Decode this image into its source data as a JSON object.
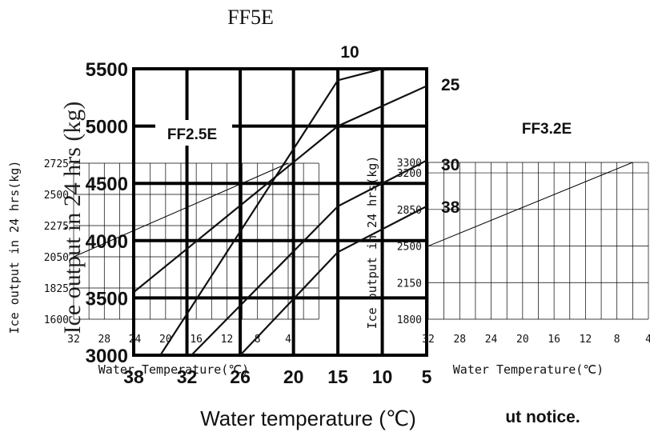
{
  "chart_data": [
    {
      "type": "line",
      "title": "FF5E",
      "xlabel": "Water temperature (℃)",
      "ylabel": "Ice output in 24 hrs (kg)",
      "x_ticks": [
        "38",
        "32",
        "26",
        "20",
        "15",
        "10",
        "5"
      ],
      "y_ticks": [
        "3000",
        "3500",
        "4000",
        "4500",
        "5000",
        "5500"
      ],
      "xlim": [
        38,
        5
      ],
      "ylim": [
        3000,
        5500
      ],
      "grid": true,
      "series": [
        {
          "name": "10",
          "x": [
            35,
            15,
            10
          ],
          "y": [
            3000,
            5400,
            5500
          ]
        },
        {
          "name": "25",
          "x": [
            38,
            15,
            5
          ],
          "y": [
            3550,
            5000,
            5350
          ]
        },
        {
          "name": "30",
          "x": [
            31.5,
            15,
            5
          ],
          "y": [
            3000,
            4300,
            4700
          ]
        },
        {
          "name": "38",
          "x": [
            26,
            15,
            5
          ],
          "y": [
            3000,
            3900,
            4300
          ]
        }
      ]
    },
    {
      "type": "line",
      "title": "FF2.5E",
      "xlabel": "Water  Temperature(℃)",
      "ylabel": "Ice  output  in  24  hrs(kg)",
      "x_ticks": [
        "32",
        "28",
        "24",
        "20",
        "16",
        "12",
        "8",
        "4"
      ],
      "y_ticks": [
        "1600",
        "1825",
        "2050",
        "2275",
        "2500",
        "2725"
      ],
      "xlim": [
        32,
        2
      ],
      "ylim": [
        1600,
        2725
      ],
      "grid": true,
      "series": [
        {
          "name": "",
          "x": [
            32,
            4
          ],
          "y": [
            2050,
            2725
          ]
        }
      ]
    },
    {
      "type": "line",
      "title": "FF3.2E",
      "xlabel": "Water  Temperature(℃)",
      "ylabel": "Ice  output  in  24  hrs(kg)",
      "x_ticks": [
        "32",
        "28",
        "24",
        "20",
        "16",
        "12",
        "8",
        "4"
      ],
      "y_ticks": [
        "1800",
        "2150",
        "2500",
        "2850",
        "3200",
        "3300"
      ],
      "xlim": [
        32,
        4
      ],
      "ylim": [
        1800,
        3300
      ],
      "grid": true,
      "series": [
        {
          "name": "",
          "x": [
            32,
            6
          ],
          "y": [
            2500,
            3300
          ]
        }
      ]
    }
  ],
  "footer_text": "ut notice."
}
